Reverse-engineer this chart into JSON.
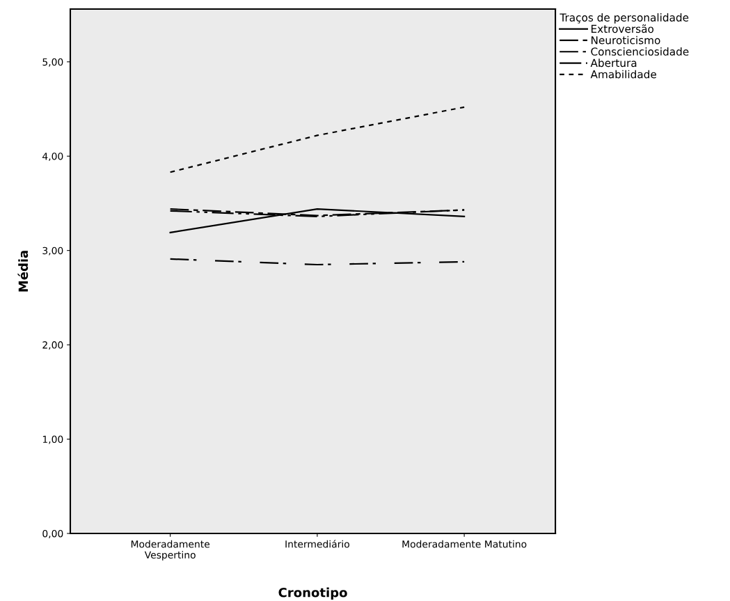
{
  "chart_data": {
    "type": "line",
    "xlabel": "Cronotipo",
    "ylabel": "Média",
    "legend_title": "Traços de personalidade",
    "legend": "top right",
    "grid": false,
    "marker": "none",
    "categories": [
      "Moderadamente\nVespertino",
      "Intermediário",
      "Moderadamente Matutino"
    ],
    "ylim": [
      0,
      5.56
    ],
    "yticks": [
      {
        "value": 0,
        "label": "0,00"
      },
      {
        "value": 1,
        "label": "1,00"
      },
      {
        "value": 2,
        "label": "2,00"
      },
      {
        "value": 3,
        "label": "3,00"
      },
      {
        "value": 4,
        "label": "4,00"
      },
      {
        "value": 5,
        "label": "5,00"
      }
    ],
    "series": [
      {
        "name": "Extroversão",
        "color": "#000000",
        "line_style": "solid",
        "values": [
          3.19,
          3.44,
          3.36
        ]
      },
      {
        "name": "Neuroticismo",
        "color": "#000000",
        "line_style": "dashed",
        "values": [
          3.44,
          3.37,
          3.43
        ]
      },
      {
        "name": "Conscienciosidade",
        "color": "#000000",
        "line_style": "dashdot",
        "values": [
          2.91,
          2.85,
          2.88
        ]
      },
      {
        "name": "Abertura",
        "color": "#000000",
        "line_style": "dashdotdot",
        "values": [
          3.42,
          3.36,
          3.43
        ]
      },
      {
        "name": "Amabilidade",
        "color": "#000000",
        "line_style": "dotted",
        "values": [
          3.83,
          4.22,
          4.52
        ]
      }
    ]
  }
}
